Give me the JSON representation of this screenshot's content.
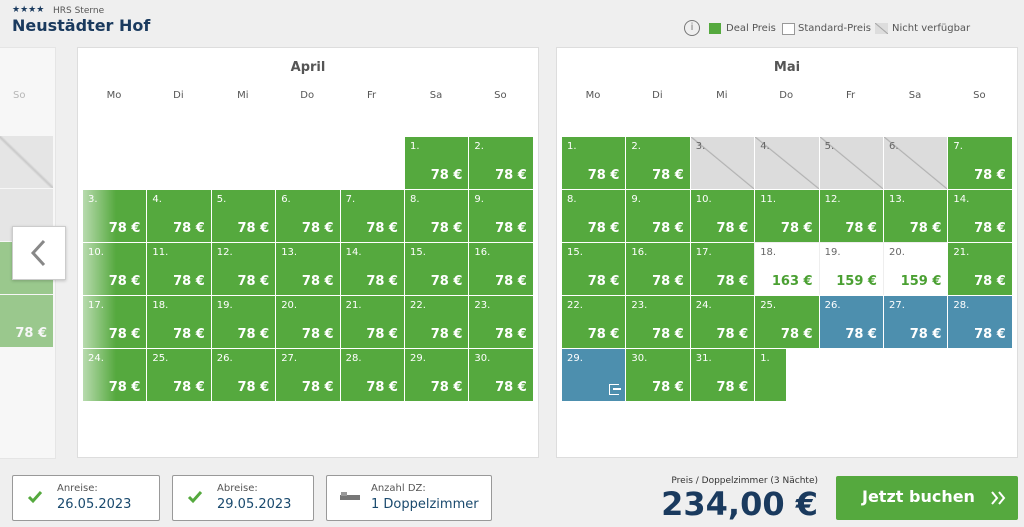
{
  "header": {
    "stars": "★★★★",
    "rating_label": "HRS Sterne",
    "title": "Neustädter Hof"
  },
  "legend": [
    "Deal Preis",
    "Standard-Preis",
    "Nicht verfügbar"
  ],
  "weekdays": [
    "Mo",
    "Di",
    "Mi",
    "Do",
    "Fr",
    "Sa",
    "So"
  ],
  "prev_month": {
    "price": "78 €"
  },
  "calendars": [
    {
      "month": "April",
      "days": [
        {
          "day": "1.",
          "price": "78 €",
          "status": "deal"
        },
        {
          "day": "2.",
          "price": "78 €",
          "status": "deal"
        },
        {
          "day": "3.",
          "price": "78 €",
          "status": "deal"
        },
        {
          "day": "4.",
          "price": "78 €",
          "status": "deal"
        },
        {
          "day": "5.",
          "price": "78 €",
          "status": "deal"
        },
        {
          "day": "6.",
          "price": "78 €",
          "status": "deal"
        },
        {
          "day": "7.",
          "price": "78 €",
          "status": "deal"
        },
        {
          "day": "8.",
          "price": "78 €",
          "status": "deal"
        },
        {
          "day": "9.",
          "price": "78 €",
          "status": "deal"
        },
        {
          "day": "10.",
          "price": "78 €",
          "status": "deal"
        },
        {
          "day": "11.",
          "price": "78 €",
          "status": "deal"
        },
        {
          "day": "12.",
          "price": "78 €",
          "status": "deal"
        },
        {
          "day": "13.",
          "price": "78 €",
          "status": "deal"
        },
        {
          "day": "14.",
          "price": "78 €",
          "status": "deal"
        },
        {
          "day": "15.",
          "price": "78 €",
          "status": "deal"
        },
        {
          "day": "16.",
          "price": "78 €",
          "status": "deal"
        },
        {
          "day": "17.",
          "price": "78 €",
          "status": "deal"
        },
        {
          "day": "18.",
          "price": "78 €",
          "status": "deal"
        },
        {
          "day": "19.",
          "price": "78 €",
          "status": "deal"
        },
        {
          "day": "20.",
          "price": "78 €",
          "status": "deal"
        },
        {
          "day": "21.",
          "price": "78 €",
          "status": "deal"
        },
        {
          "day": "22.",
          "price": "78 €",
          "status": "deal"
        },
        {
          "day": "23.",
          "price": "78 €",
          "status": "deal"
        },
        {
          "day": "24.",
          "price": "78 €",
          "status": "deal"
        },
        {
          "day": "25.",
          "price": "78 €",
          "status": "deal"
        },
        {
          "day": "26.",
          "price": "78 €",
          "status": "deal"
        },
        {
          "day": "27.",
          "price": "78 €",
          "status": "deal"
        },
        {
          "day": "28.",
          "price": "78 €",
          "status": "deal"
        },
        {
          "day": "29.",
          "price": "78 €",
          "status": "deal"
        },
        {
          "day": "30.",
          "price": "78 €",
          "status": "deal"
        }
      ]
    },
    {
      "month": "Mai",
      "days": [
        {
          "day": "1.",
          "price": "78 €",
          "status": "deal"
        },
        {
          "day": "2.",
          "price": "78 €",
          "status": "deal"
        },
        {
          "day": "3.",
          "status": "unavailable"
        },
        {
          "day": "4.",
          "status": "unavailable"
        },
        {
          "day": "5.",
          "status": "unavailable"
        },
        {
          "day": "6.",
          "status": "unavailable"
        },
        {
          "day": "7.",
          "price": "78 €",
          "status": "deal"
        },
        {
          "day": "8.",
          "price": "78 €",
          "status": "deal"
        },
        {
          "day": "9.",
          "price": "78 €",
          "status": "deal"
        },
        {
          "day": "10.",
          "price": "78 €",
          "status": "deal"
        },
        {
          "day": "11.",
          "price": "78 €",
          "status": "deal"
        },
        {
          "day": "12.",
          "price": "78 €",
          "status": "deal"
        },
        {
          "day": "13.",
          "price": "78 €",
          "status": "deal"
        },
        {
          "day": "14.",
          "price": "78 €",
          "status": "deal"
        },
        {
          "day": "15.",
          "price": "78 €",
          "status": "deal"
        },
        {
          "day": "16.",
          "price": "78 €",
          "status": "deal"
        },
        {
          "day": "17.",
          "price": "78 €",
          "status": "deal"
        },
        {
          "day": "18.",
          "price": "163 €",
          "status": "standard"
        },
        {
          "day": "19.",
          "price": "159 €",
          "status": "standard"
        },
        {
          "day": "20.",
          "price": "159 €",
          "status": "standard"
        },
        {
          "day": "21.",
          "price": "78 €",
          "status": "deal"
        },
        {
          "day": "22.",
          "price": "78 €",
          "status": "deal"
        },
        {
          "day": "23.",
          "price": "78 €",
          "status": "deal"
        },
        {
          "day": "24.",
          "price": "78 €",
          "status": "deal"
        },
        {
          "day": "25.",
          "price": "78 €",
          "status": "deal"
        },
        {
          "day": "26.",
          "price": "78 €",
          "status": "selected"
        },
        {
          "day": "27.",
          "price": "78 €",
          "status": "selected"
        },
        {
          "day": "28.",
          "price": "78 €",
          "status": "selected"
        },
        {
          "day": "29.",
          "status": "checkout"
        },
        {
          "day": "30.",
          "price": "78 €",
          "status": "deal"
        },
        {
          "day": "31.",
          "price": "78 €",
          "status": "deal"
        },
        {
          "day": "1.",
          "status": "next"
        }
      ]
    }
  ],
  "booking": {
    "arrival_label": "Anreise:",
    "arrival": "26.05.2023",
    "departure_label": "Abreise:",
    "departure": "29.05.2023",
    "rooms_label": "Anzahl DZ:",
    "rooms": "1 Doppelzimmer",
    "price_label": "Preis / Doppelzimmer (3 Nächte)",
    "price": "234,00 €",
    "button": "Jetzt buchen"
  }
}
